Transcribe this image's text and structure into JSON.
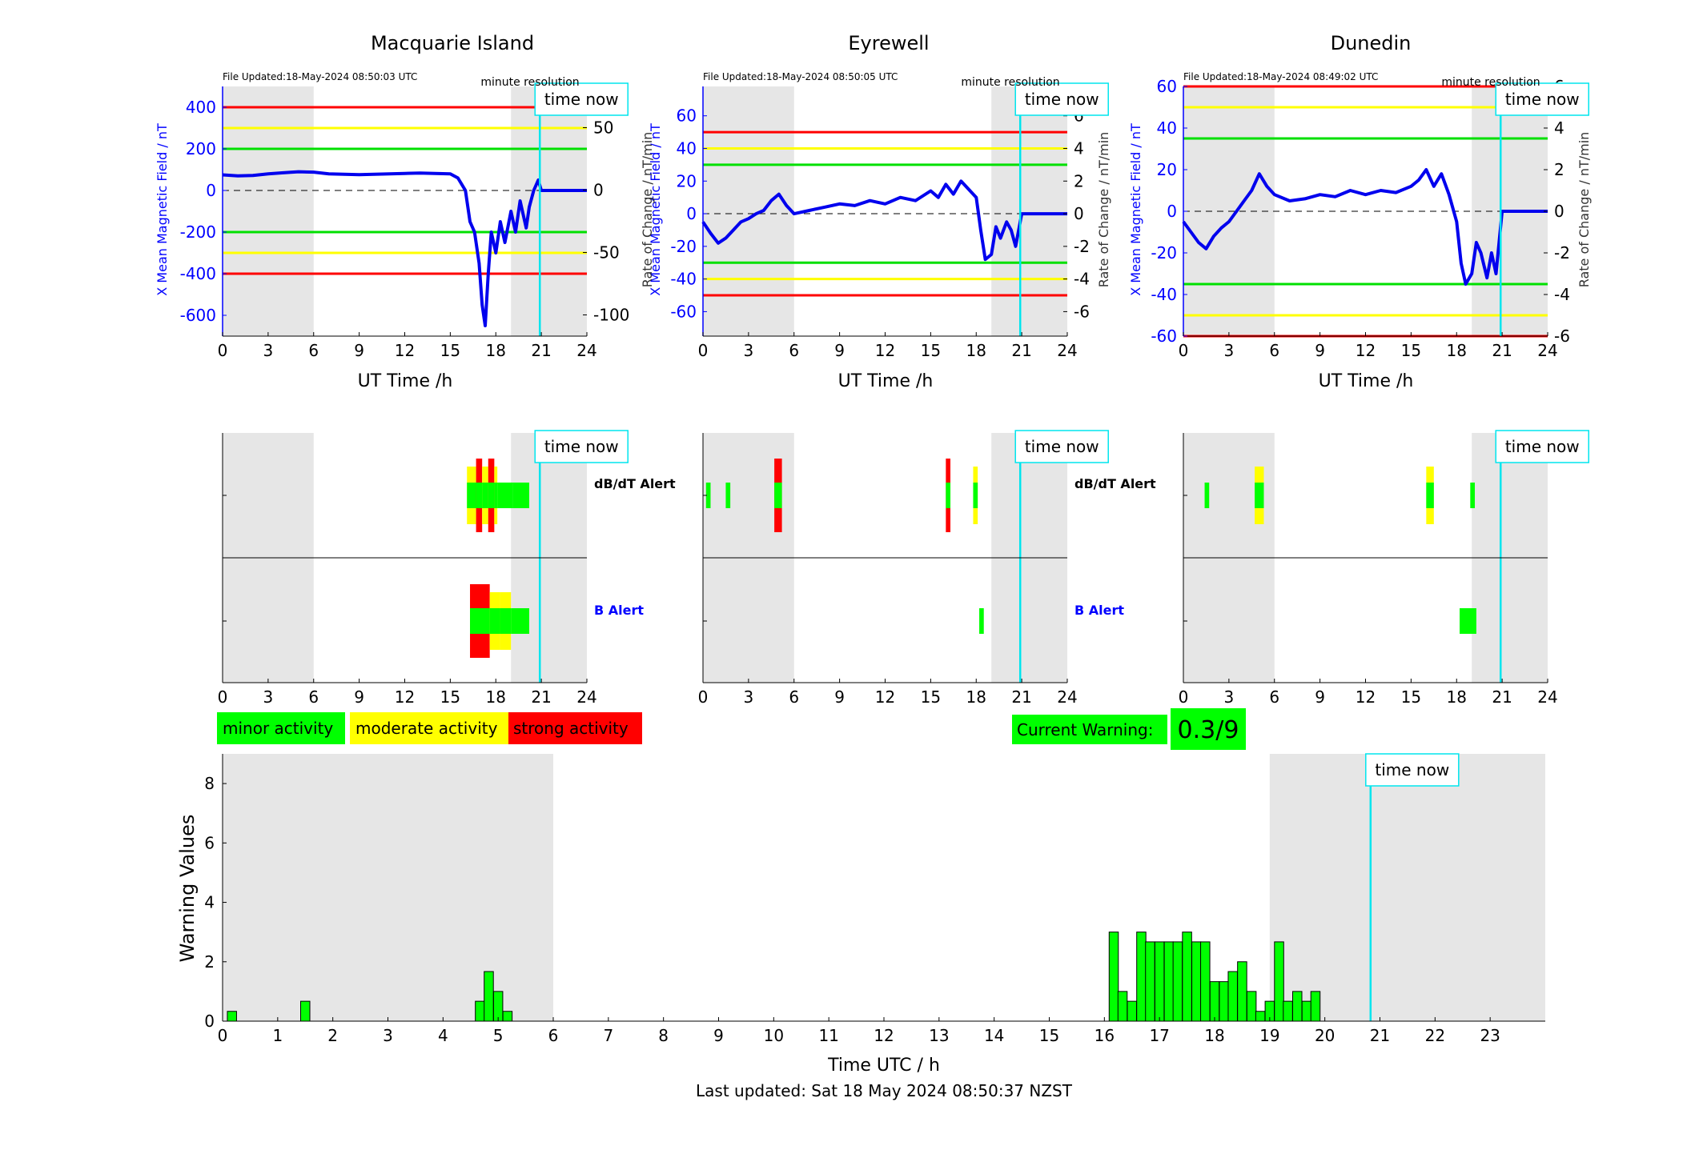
{
  "chart_data": [
    {
      "type": "line",
      "title": "Macquarie Island",
      "file_updated": "File Updated:18-May-2024 08:50:03 UTC",
      "resolution_label": "minute resolution",
      "time_now_label": "time now",
      "xlabel": "UT Time /h",
      "ylabel_left": "X Mean Magnetic Field / nT",
      "ylabel_right": "Rate of Change / nT/min",
      "xlim": [
        0,
        24
      ],
      "ylim_left": [
        -700,
        500
      ],
      "ylim_right": [
        -117,
        83
      ],
      "x_ticks": [
        0,
        3,
        6,
        9,
        12,
        15,
        18,
        21,
        24
      ],
      "y_ticks_left": [
        -600,
        -400,
        -200,
        0,
        200,
        400
      ],
      "y_ticks_right": [
        -100,
        -50,
        0,
        50
      ],
      "night_shade": [
        [
          0,
          6
        ],
        [
          19,
          24
        ]
      ],
      "time_now": 20.9,
      "threshold_lines": [
        {
          "color": "#ff0000",
          "values": [
            400,
            -400
          ]
        },
        {
          "color": "#ffff00",
          "values": [
            300,
            -300
          ]
        },
        {
          "color": "#00e000",
          "values": [
            200,
            -200
          ]
        }
      ],
      "series": [
        {
          "x": [
            0,
            1,
            2,
            3,
            4,
            5,
            6,
            7,
            8,
            9,
            10,
            11,
            12,
            13,
            14,
            15,
            15.5,
            16,
            16.3,
            16.6,
            16.9,
            17.1,
            17.3,
            17.5,
            17.7,
            18,
            18.3,
            18.6,
            19,
            19.3,
            19.6,
            20,
            20.2,
            20.5,
            20.8,
            21,
            22,
            23,
            24
          ],
          "y": [
            75,
            70,
            72,
            80,
            85,
            90,
            88,
            80,
            78,
            76,
            78,
            80,
            82,
            84,
            82,
            80,
            60,
            0,
            -150,
            -200,
            -350,
            -550,
            -650,
            -400,
            -200,
            -300,
            -150,
            -250,
            -100,
            -200,
            -50,
            -180,
            -80,
            0,
            50,
            0,
            0,
            0,
            0
          ]
        }
      ]
    },
    {
      "type": "line",
      "title": "Eyrewell",
      "file_updated": "File Updated:18-May-2024 08:50:05 UTC",
      "resolution_label": "minute resolution",
      "time_now_label": "time now",
      "xlabel": "UT Time /h",
      "ylabel_left": "X Mean Magnetic Field / nT",
      "ylabel_right": "Rate of Change / nT/min",
      "xlim": [
        0,
        24
      ],
      "ylim_left": [
        -75,
        78
      ],
      "ylim_right": [
        -7.5,
        7.8
      ],
      "x_ticks": [
        0,
        3,
        6,
        9,
        12,
        15,
        18,
        21,
        24
      ],
      "y_ticks_left": [
        -60,
        -40,
        -20,
        0,
        20,
        40,
        60
      ],
      "y_ticks_right": [
        -6,
        -4,
        -2,
        0,
        2,
        4,
        6
      ],
      "night_shade": [
        [
          0,
          6
        ],
        [
          19,
          24
        ]
      ],
      "time_now": 20.9,
      "threshold_lines": [
        {
          "color": "#ff0000",
          "values": [
            50,
            -50
          ]
        },
        {
          "color": "#ffff00",
          "values": [
            40,
            -40
          ]
        },
        {
          "color": "#00e000",
          "values": [
            30,
            -30
          ]
        }
      ],
      "series": [
        {
          "x": [
            0,
            0.5,
            1,
            1.5,
            2,
            2.5,
            3,
            3.5,
            4,
            4.5,
            5,
            5.5,
            6,
            7,
            8,
            9,
            10,
            11,
            12,
            13,
            14,
            15,
            15.5,
            16,
            16.5,
            17,
            17.5,
            18,
            18.3,
            18.6,
            19,
            19.3,
            19.6,
            20,
            20.3,
            20.6,
            21,
            22,
            23,
            24
          ],
          "y": [
            -5,
            -12,
            -18,
            -15,
            -10,
            -5,
            -3,
            0,
            2,
            8,
            12,
            5,
            0,
            2,
            4,
            6,
            5,
            8,
            6,
            10,
            8,
            14,
            10,
            18,
            12,
            20,
            15,
            10,
            -10,
            -28,
            -25,
            -8,
            -15,
            -5,
            -10,
            -20,
            0,
            0,
            0,
            0
          ]
        }
      ]
    },
    {
      "type": "line",
      "title": "Dunedin",
      "file_updated": "File Updated:18-May-2024 08:49:02 UTC",
      "resolution_label": "minute resolution",
      "time_now_label": "time now",
      "xlabel": "UT Time /h",
      "ylabel_left": "X Mean Magnetic Field / nT",
      "ylabel_right": "Rate of Change / nT/min",
      "xlim": [
        0,
        24
      ],
      "ylim_left": [
        -60,
        60
      ],
      "ylim_right": [
        -6,
        6
      ],
      "x_ticks": [
        0,
        3,
        6,
        9,
        12,
        15,
        18,
        21,
        24
      ],
      "y_ticks_left": [
        -60,
        -40,
        -20,
        0,
        20,
        40,
        60
      ],
      "y_ticks_right": [
        -6,
        -4,
        -2,
        0,
        2,
        4,
        6
      ],
      "night_shade": [
        [
          0,
          6
        ],
        [
          19,
          24
        ]
      ],
      "time_now": 20.9,
      "threshold_lines": [
        {
          "color": "#ff0000",
          "values": [
            60,
            -60
          ]
        },
        {
          "color": "#ffff00",
          "values": [
            50,
            -50
          ]
        },
        {
          "color": "#00e000",
          "values": [
            35,
            -35
          ]
        }
      ],
      "series": [
        {
          "x": [
            0,
            0.5,
            1,
            1.5,
            2,
            2.5,
            3,
            3.5,
            4,
            4.5,
            5,
            5.5,
            6,
            7,
            8,
            9,
            10,
            11,
            12,
            13,
            14,
            15,
            15.5,
            16,
            16.5,
            17,
            17.5,
            18,
            18.3,
            18.6,
            19,
            19.3,
            19.6,
            20,
            20.3,
            20.6,
            21,
            22,
            23,
            24
          ],
          "y": [
            -5,
            -10,
            -15,
            -18,
            -12,
            -8,
            -5,
            0,
            5,
            10,
            18,
            12,
            8,
            5,
            6,
            8,
            7,
            10,
            8,
            10,
            9,
            12,
            15,
            20,
            12,
            18,
            8,
            -5,
            -25,
            -35,
            -30,
            -15,
            -20,
            -32,
            -20,
            -30,
            0,
            0,
            0,
            0
          ]
        }
      ]
    },
    {
      "type": "heatmap",
      "title": "Macquarie Island",
      "time_now_label": "time now",
      "row_labels": [
        "dB/dT Alert",
        "B Alert"
      ],
      "xlim": [
        0,
        24
      ],
      "x_ticks": [
        0,
        3,
        6,
        9,
        12,
        15,
        18,
        21,
        24
      ],
      "night_shade": [
        [
          0,
          6
        ],
        [
          19,
          24
        ]
      ],
      "time_now": 20.9,
      "dbdt_alerts": [
        {
          "x": [
            16.1,
            16.7
          ],
          "level": 2
        },
        {
          "x": [
            16.7,
            17.1
          ],
          "level": 3
        },
        {
          "x": [
            17.1,
            17.5
          ],
          "level": 2
        },
        {
          "x": [
            17.5,
            17.9
          ],
          "level": 3
        },
        {
          "x": [
            17.9,
            18.1
          ],
          "level": 2
        },
        {
          "x": [
            18.1,
            19.1
          ],
          "level": 1
        },
        {
          "x": [
            19.1,
            20.2
          ],
          "level": 1
        }
      ],
      "b_alerts": [
        {
          "x": [
            16.3,
            17.6
          ],
          "level": 3
        },
        {
          "x": [
            17.6,
            18.3
          ],
          "level": 2
        },
        {
          "x": [
            18.3,
            19.0
          ],
          "level": 2
        },
        {
          "x": [
            19.0,
            20.2
          ],
          "level": 1
        }
      ]
    },
    {
      "type": "heatmap",
      "title": "Eyrewell",
      "time_now_label": "time now",
      "row_labels": [
        "dB/dT Alert",
        "B Alert"
      ],
      "xlim": [
        0,
        24
      ],
      "x_ticks": [
        0,
        3,
        6,
        9,
        12,
        15,
        18,
        21,
        24
      ],
      "night_shade": [
        [
          0,
          6
        ],
        [
          19,
          24
        ]
      ],
      "time_now": 20.9,
      "dbdt_alerts": [
        {
          "x": [
            0.2,
            0.5
          ],
          "level": 1
        },
        {
          "x": [
            1.5,
            1.8
          ],
          "level": 1
        },
        {
          "x": [
            4.7,
            5.2
          ],
          "level": 3
        },
        {
          "x": [
            16.0,
            16.3
          ],
          "level": 3
        },
        {
          "x": [
            17.8,
            18.1
          ],
          "level": 2
        }
      ],
      "b_alerts": [
        {
          "x": [
            18.2,
            18.5
          ],
          "level": 1
        }
      ]
    },
    {
      "type": "heatmap",
      "title": "Dunedin",
      "time_now_label": "time now",
      "row_labels": [
        "dB/dT Alert",
        "B Alert"
      ],
      "xlim": [
        0,
        24
      ],
      "x_ticks": [
        0,
        3,
        6,
        9,
        12,
        15,
        18,
        21,
        24
      ],
      "night_shade": [
        [
          0,
          6
        ],
        [
          19,
          24
        ]
      ],
      "time_now": 20.9,
      "dbdt_alerts": [
        {
          "x": [
            1.4,
            1.7
          ],
          "level": 1
        },
        {
          "x": [
            4.7,
            5.3
          ],
          "level": 2
        },
        {
          "x": [
            16.0,
            16.5
          ],
          "level": 2
        },
        {
          "x": [
            18.9,
            19.2
          ],
          "level": 1
        }
      ],
      "b_alerts": [
        {
          "x": [
            18.2,
            19.3
          ],
          "level": 1
        }
      ]
    },
    {
      "type": "bar",
      "time_now_label": "time now",
      "xlabel": "Time UTC / h",
      "ylabel": "Warning Values",
      "xlim": [
        0,
        24
      ],
      "ylim": [
        0,
        9
      ],
      "x_ticks": [
        0,
        1,
        2,
        3,
        4,
        5,
        6,
        7,
        8,
        9,
        10,
        11,
        12,
        13,
        14,
        15,
        16,
        17,
        18,
        19,
        20,
        21,
        22,
        23
      ],
      "y_ticks": [
        0,
        2,
        4,
        6,
        8
      ],
      "night_shade": [
        [
          0,
          6
        ],
        [
          19,
          24
        ]
      ],
      "time_now": 20.83,
      "bar_width": 0.167,
      "x": [
        0.17,
        1.5,
        4.67,
        4.83,
        5.0,
        5.17,
        16.17,
        16.33,
        16.5,
        16.67,
        16.83,
        17.0,
        17.17,
        17.33,
        17.5,
        17.67,
        17.83,
        18.0,
        18.17,
        18.33,
        18.5,
        18.67,
        18.83,
        19.0,
        19.17,
        19.33,
        19.5,
        19.67,
        19.83
      ],
      "values": [
        0.33,
        0.67,
        0.67,
        1.67,
        1.0,
        0.33,
        3.0,
        1.0,
        0.67,
        3.0,
        2.67,
        2.67,
        2.67,
        2.67,
        3.0,
        2.67,
        2.67,
        1.33,
        1.33,
        1.67,
        2.0,
        1.0,
        0.33,
        0.67,
        2.67,
        0.67,
        1.0,
        0.67,
        1.0
      ]
    }
  ],
  "legend": {
    "minor": {
      "label": "minor activity",
      "color": "#00ff00"
    },
    "moderate": {
      "label": "moderate activity",
      "color": "#ffff00"
    },
    "strong": {
      "label": "strong activity",
      "color": "#ff0000"
    }
  },
  "current_warning": {
    "label": "Current Warning:",
    "value": "0.3/9"
  },
  "last_updated": "Last updated: Sat 18 May 2024 08:50:37 NZST"
}
